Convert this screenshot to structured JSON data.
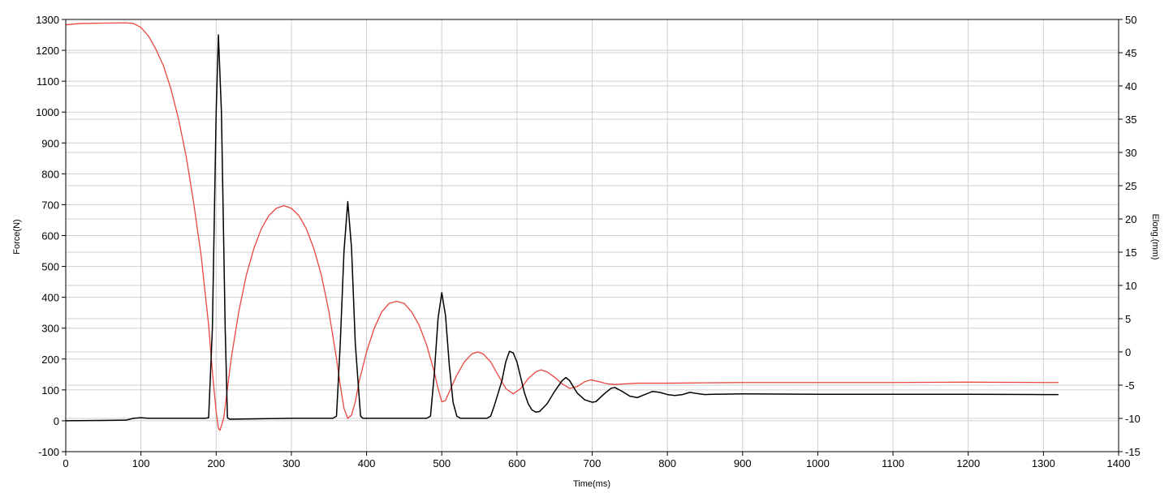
{
  "chart_data": {
    "type": "line",
    "title": "",
    "xlabel": "Time(ms)",
    "ylabel": "Force(N)",
    "y2label": "Elong.(mm)",
    "xlim": [
      0,
      1400
    ],
    "ylim": [
      -100,
      1300
    ],
    "y2lim": [
      -15,
      50
    ],
    "grid": true,
    "x_ticks": [
      "0",
      "100",
      "200",
      "300",
      "400",
      "500",
      "600",
      "700",
      "800",
      "900",
      "1000",
      "1100",
      "1200",
      "1300",
      "1400"
    ],
    "y_ticks": [
      "-100",
      "0",
      "100",
      "200",
      "300",
      "400",
      "500",
      "600",
      "700",
      "800",
      "900",
      "1000",
      "1100",
      "1200",
      "1300"
    ],
    "y2_ticks": [
      "-15",
      "-10",
      "-5",
      "0",
      "5",
      "10",
      "15",
      "20",
      "25",
      "30",
      "35",
      "40",
      "45",
      "50"
    ],
    "series": [
      {
        "axis": "left",
        "color": "#000000",
        "points": [
          [
            0,
            0
          ],
          [
            80,
            2
          ],
          [
            90,
            8
          ],
          [
            100,
            10
          ],
          [
            110,
            8
          ],
          [
            120,
            8
          ],
          [
            185,
            8
          ],
          [
            190,
            10
          ],
          [
            195,
            300
          ],
          [
            200,
            1000
          ],
          [
            203,
            1250
          ],
          [
            207,
            1000
          ],
          [
            212,
            300
          ],
          [
            215,
            10
          ],
          [
            218,
            5
          ],
          [
            300,
            8
          ],
          [
            355,
            8
          ],
          [
            360,
            15
          ],
          [
            365,
            250
          ],
          [
            370,
            550
          ],
          [
            375,
            710
          ],
          [
            380,
            560
          ],
          [
            385,
            250
          ],
          [
            392,
            15
          ],
          [
            395,
            8
          ],
          [
            480,
            8
          ],
          [
            485,
            15
          ],
          [
            490,
            150
          ],
          [
            495,
            330
          ],
          [
            500,
            415
          ],
          [
            505,
            340
          ],
          [
            510,
            180
          ],
          [
            515,
            60
          ],
          [
            520,
            15
          ],
          [
            525,
            8
          ],
          [
            560,
            8
          ],
          [
            565,
            15
          ],
          [
            570,
            50
          ],
          [
            575,
            90
          ],
          [
            580,
            130
          ],
          [
            585,
            190
          ],
          [
            590,
            225
          ],
          [
            595,
            220
          ],
          [
            600,
            190
          ],
          [
            605,
            140
          ],
          [
            610,
            90
          ],
          [
            615,
            55
          ],
          [
            620,
            35
          ],
          [
            625,
            28
          ],
          [
            630,
            30
          ],
          [
            640,
            55
          ],
          [
            650,
            95
          ],
          [
            660,
            130
          ],
          [
            665,
            140
          ],
          [
            670,
            130
          ],
          [
            675,
            110
          ],
          [
            680,
            90
          ],
          [
            690,
            68
          ],
          [
            700,
            60
          ],
          [
            705,
            62
          ],
          [
            715,
            85
          ],
          [
            725,
            105
          ],
          [
            730,
            108
          ],
          [
            740,
            95
          ],
          [
            750,
            80
          ],
          [
            760,
            75
          ],
          [
            770,
            85
          ],
          [
            780,
            95
          ],
          [
            790,
            92
          ],
          [
            800,
            85
          ],
          [
            810,
            82
          ],
          [
            820,
            85
          ],
          [
            830,
            92
          ],
          [
            840,
            88
          ],
          [
            850,
            85
          ],
          [
            860,
            86
          ],
          [
            900,
            87
          ],
          [
            1000,
            86
          ],
          [
            1100,
            86
          ],
          [
            1200,
            86
          ],
          [
            1300,
            85
          ],
          [
            1320,
            85
          ]
        ]
      },
      {
        "axis": "right",
        "color": "#e8463e",
        "points": [
          [
            0,
            49.2
          ],
          [
            20,
            49.4
          ],
          [
            80,
            49.5
          ],
          [
            90,
            49.4
          ],
          [
            100,
            48.8
          ],
          [
            110,
            47.5
          ],
          [
            120,
            45.5
          ],
          [
            130,
            43
          ],
          [
            140,
            39.5
          ],
          [
            150,
            35
          ],
          [
            160,
            29.5
          ],
          [
            170,
            22.5
          ],
          [
            180,
            14.5
          ],
          [
            190,
            4
          ],
          [
            195,
            -3
          ],
          [
            200,
            -9
          ],
          [
            203,
            -11.5
          ],
          [
            205,
            -11.8
          ],
          [
            210,
            -10
          ],
          [
            215,
            -5.5
          ],
          [
            220,
            -1
          ],
          [
            230,
            6
          ],
          [
            240,
            11.5
          ],
          [
            250,
            15.5
          ],
          [
            260,
            18.5
          ],
          [
            270,
            20.5
          ],
          [
            280,
            21.6
          ],
          [
            290,
            22
          ],
          [
            300,
            21.6
          ],
          [
            310,
            20.5
          ],
          [
            320,
            18.5
          ],
          [
            330,
            15.5
          ],
          [
            340,
            11.5
          ],
          [
            350,
            6
          ],
          [
            360,
            -1
          ],
          [
            365,
            -5
          ],
          [
            370,
            -8.5
          ],
          [
            375,
            -10
          ],
          [
            380,
            -9.5
          ],
          [
            385,
            -7.5
          ],
          [
            390,
            -4.5
          ],
          [
            400,
            0
          ],
          [
            410,
            3.5
          ],
          [
            420,
            6
          ],
          [
            430,
            7.3
          ],
          [
            440,
            7.6
          ],
          [
            450,
            7.3
          ],
          [
            460,
            6
          ],
          [
            470,
            4
          ],
          [
            480,
            1
          ],
          [
            490,
            -3
          ],
          [
            495,
            -5.5
          ],
          [
            500,
            -7.5
          ],
          [
            505,
            -7.3
          ],
          [
            510,
            -6
          ],
          [
            520,
            -3.5
          ],
          [
            530,
            -1.5
          ],
          [
            540,
            -0.3
          ],
          [
            548,
            0
          ],
          [
            555,
            -0.3
          ],
          [
            565,
            -1.5
          ],
          [
            575,
            -3.5
          ],
          [
            585,
            -5.5
          ],
          [
            595,
            -6.3
          ],
          [
            605,
            -5.5
          ],
          [
            615,
            -4
          ],
          [
            625,
            -3
          ],
          [
            632,
            -2.7
          ],
          [
            640,
            -3
          ],
          [
            650,
            -3.8
          ],
          [
            660,
            -4.8
          ],
          [
            670,
            -5.5
          ],
          [
            680,
            -5.2
          ],
          [
            690,
            -4.5
          ],
          [
            698,
            -4.2
          ],
          [
            710,
            -4.5
          ],
          [
            720,
            -4.8
          ],
          [
            730,
            -4.9
          ],
          [
            760,
            -4.7
          ],
          [
            800,
            -4.7
          ],
          [
            850,
            -4.65
          ],
          [
            900,
            -4.6
          ],
          [
            1000,
            -4.6
          ],
          [
            1100,
            -4.6
          ],
          [
            1200,
            -4.55
          ],
          [
            1300,
            -4.6
          ],
          [
            1320,
            -4.6
          ]
        ]
      }
    ]
  }
}
